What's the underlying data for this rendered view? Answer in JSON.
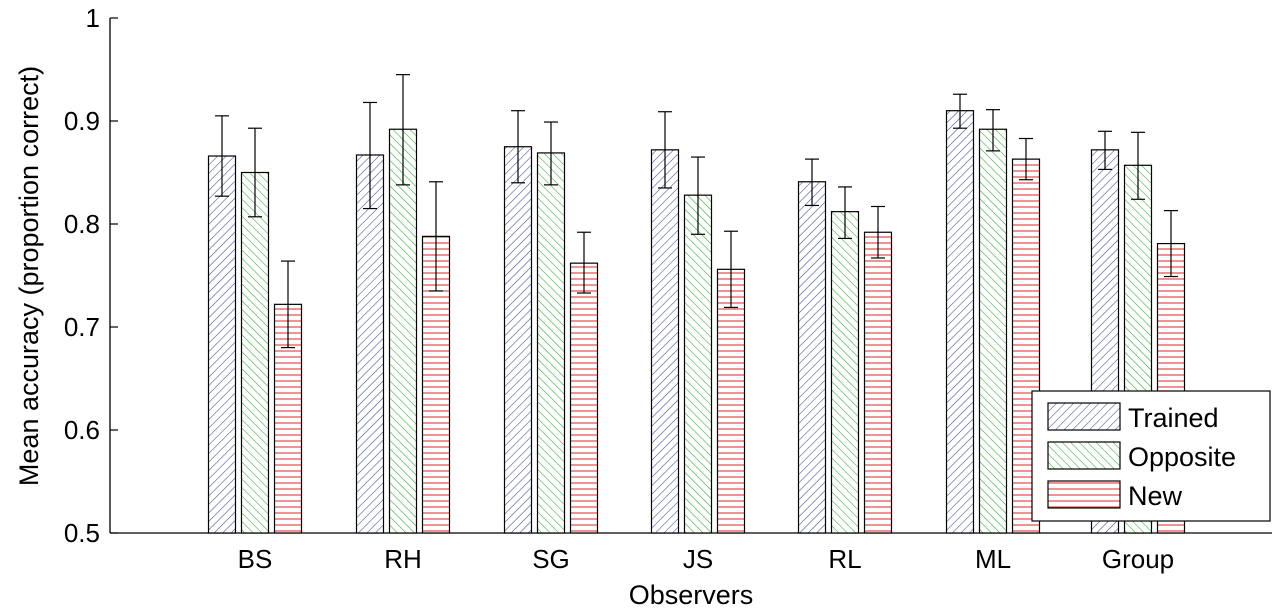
{
  "chart_data": {
    "type": "bar",
    "title": "",
    "xlabel": "Observers",
    "ylabel": "Mean accuracy (proportion correct)",
    "ylim": [
      0.5,
      1.0
    ],
    "yticks": [
      0.5,
      0.6,
      0.7,
      0.8,
      0.9,
      1.0
    ],
    "ytick_labels": [
      "0.5",
      "0.6",
      "0.7",
      "0.8",
      "0.9",
      "1"
    ],
    "categories": [
      "BS",
      "RH",
      "SG",
      "JS",
      "RL",
      "ML",
      "Group"
    ],
    "grid": false,
    "legend_position": "bottom-right",
    "error_bars": true,
    "series": [
      {
        "name": "Trained",
        "pattern": "diagonal-hatch",
        "color": "#3a4a9c",
        "values": [
          0.866,
          0.867,
          0.875,
          0.872,
          0.841,
          0.91,
          0.872
        ],
        "err_low": [
          0.827,
          0.815,
          0.84,
          0.835,
          0.818,
          0.893,
          0.853
        ],
        "err_high": [
          0.905,
          0.918,
          0.91,
          0.909,
          0.863,
          0.926,
          0.89
        ]
      },
      {
        "name": "Opposite",
        "pattern": "diagonal-hatch",
        "color": "#2eaa2e",
        "values": [
          0.85,
          0.892,
          0.869,
          0.828,
          0.812,
          0.892,
          0.857
        ],
        "err_low": [
          0.807,
          0.838,
          0.838,
          0.79,
          0.786,
          0.871,
          0.824
        ],
        "err_high": [
          0.893,
          0.945,
          0.899,
          0.865,
          0.836,
          0.911,
          0.889
        ]
      },
      {
        "name": "New",
        "pattern": "horizontal-hatch",
        "color": "#e23a3a",
        "values": [
          0.722,
          0.788,
          0.762,
          0.756,
          0.792,
          0.863,
          0.781
        ],
        "err_low": [
          0.68,
          0.735,
          0.733,
          0.719,
          0.767,
          0.843,
          0.749
        ],
        "err_high": [
          0.764,
          0.841,
          0.792,
          0.793,
          0.817,
          0.883,
          0.813
        ]
      }
    ]
  }
}
